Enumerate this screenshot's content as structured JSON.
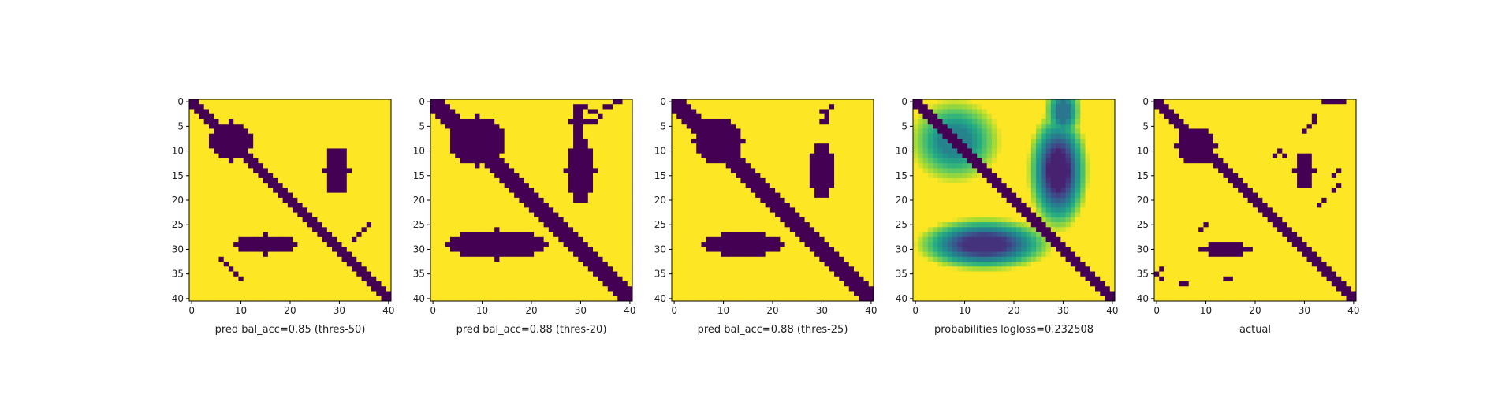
{
  "chart_data": [
    {
      "type": "heatmap",
      "title": "pred bal_acc=0.85 (thres-50)",
      "xticks": [
        0,
        10,
        20,
        30,
        40
      ],
      "yticks": [
        0,
        5,
        10,
        15,
        20,
        25,
        30,
        35,
        40
      ],
      "xlim": [
        0,
        40
      ],
      "ylim": [
        40,
        0
      ],
      "grid": false,
      "colormap": "viridis",
      "value_range": [
        0,
        1
      ],
      "background_value": 1,
      "regions": [
        {
          "kind": "band",
          "rows": [
            0,
            40
          ],
          "center_start": 0,
          "center_end": 40,
          "width": 3,
          "value": 0
        },
        {
          "kind": "ellipse",
          "cx": 8,
          "cy": 8,
          "rx": 4.5,
          "ry": 4,
          "value": 0
        },
        {
          "kind": "ellipse",
          "cx": 29.5,
          "cy": 14,
          "rx": 2.5,
          "ry": 5,
          "value": 0
        },
        {
          "kind": "ellipse",
          "cx": 15,
          "cy": 29,
          "rx": 6,
          "ry": 2,
          "value": 0
        },
        {
          "kind": "cells",
          "cells": [
            [
              33,
              28
            ],
            [
              34,
              27
            ],
            [
              35,
              26
            ],
            [
              36,
              25
            ],
            [
              6,
              32
            ],
            [
              7,
              33
            ],
            [
              8,
              34
            ],
            [
              9,
              35
            ],
            [
              10,
              36
            ]
          ],
          "value": 0
        }
      ]
    },
    {
      "type": "heatmap",
      "title": "pred bal_acc=0.88 (thres-20)",
      "xticks": [
        0,
        10,
        20,
        30,
        40
      ],
      "yticks": [
        0,
        5,
        10,
        15,
        20,
        25,
        30,
        35,
        40
      ],
      "xlim": [
        0,
        40
      ],
      "ylim": [
        40,
        0
      ],
      "grid": false,
      "colormap": "viridis",
      "value_range": [
        0,
        1
      ],
      "background_value": 1,
      "regions": [
        {
          "kind": "band",
          "rows": [
            0,
            40
          ],
          "center_start": 0,
          "center_end": 40,
          "width": 5,
          "value": 0
        },
        {
          "kind": "ellipse",
          "cx": 9,
          "cy": 8,
          "rx": 5.5,
          "ry": 5,
          "value": 0
        },
        {
          "kind": "ellipse",
          "cx": 30,
          "cy": 14,
          "rx": 3,
          "ry": 6.5,
          "value": 0
        },
        {
          "kind": "ellipse",
          "cx": 29.5,
          "cy": 4,
          "rx": 1.5,
          "ry": 4,
          "value": 0
        },
        {
          "kind": "ellipse",
          "cx": 13,
          "cy": 29,
          "rx": 10,
          "ry": 3,
          "value": 0
        },
        {
          "kind": "cells",
          "cells": [
            [
              31,
              1
            ],
            [
              32,
              2
            ],
            [
              33,
              2
            ],
            [
              34,
              3
            ],
            [
              35,
              1
            ],
            [
              36,
              1
            ],
            [
              37,
              0
            ],
            [
              38,
              0
            ],
            [
              33,
              4
            ],
            [
              32,
              4
            ]
          ],
          "value": 0
        }
      ]
    },
    {
      "type": "heatmap",
      "title": "pred bal_acc=0.88 (thres-25)",
      "xticks": [
        0,
        10,
        20,
        30,
        40
      ],
      "yticks": [
        0,
        5,
        10,
        15,
        20,
        25,
        30,
        35,
        40
      ],
      "xlim": [
        0,
        40
      ],
      "ylim": [
        40,
        0
      ],
      "grid": false,
      "colormap": "viridis",
      "value_range": [
        0,
        1
      ],
      "background_value": 1,
      "regions": [
        {
          "kind": "band",
          "rows": [
            0,
            40
          ],
          "center_start": 0,
          "center_end": 40,
          "width": 4,
          "value": 0
        },
        {
          "kind": "ellipse",
          "cx": 9,
          "cy": 8,
          "rx": 5,
          "ry": 4.5,
          "value": 0
        },
        {
          "kind": "ellipse",
          "cx": 30,
          "cy": 14,
          "rx": 2.5,
          "ry": 5.5,
          "value": 0
        },
        {
          "kind": "ellipse",
          "cx": 14,
          "cy": 29,
          "rx": 8,
          "ry": 2.5,
          "value": 0
        },
        {
          "kind": "cells",
          "cells": [
            [
              30,
              2
            ],
            [
              31,
              2
            ],
            [
              31,
              3
            ],
            [
              32,
              1
            ],
            [
              30,
              4
            ],
            [
              31,
              4
            ]
          ],
          "value": 0
        }
      ]
    },
    {
      "type": "heatmap",
      "title": "probabilities logloss=0.232508",
      "xticks": [
        0,
        10,
        20,
        30,
        40
      ],
      "yticks": [
        0,
        5,
        10,
        15,
        20,
        25,
        30,
        35,
        40
      ],
      "xlim": [
        0,
        40
      ],
      "ylim": [
        40,
        0
      ],
      "grid": false,
      "colormap": "viridis",
      "value_range": [
        0,
        1
      ],
      "background_value": 1,
      "regions": [
        {
          "kind": "band",
          "rows": [
            0,
            40
          ],
          "center_start": 0,
          "center_end": 40,
          "width": 3,
          "value": 0
        },
        {
          "kind": "blob",
          "cx": 8,
          "cy": 8,
          "rx": 6,
          "ry": 5.5,
          "value": 0.45
        },
        {
          "kind": "blob",
          "cx": 29,
          "cy": 14,
          "rx": 4,
          "ry": 8,
          "value": 0.1
        },
        {
          "kind": "blob",
          "cx": 14,
          "cy": 29,
          "rx": 9,
          "ry": 3.5,
          "value": 0.15
        },
        {
          "kind": "blob",
          "cx": 30,
          "cy": 2,
          "rx": 2.5,
          "ry": 4,
          "value": 0.4
        }
      ]
    },
    {
      "type": "heatmap",
      "title": "actual",
      "xticks": [
        0,
        10,
        20,
        30,
        40
      ],
      "yticks": [
        0,
        5,
        10,
        15,
        20,
        25,
        30,
        35,
        40
      ],
      "xlim": [
        0,
        40
      ],
      "ylim": [
        40,
        0
      ],
      "grid": false,
      "colormap": "viridis",
      "value_range": [
        0,
        1
      ],
      "background_value": 1,
      "regions": [
        {
          "kind": "band",
          "rows": [
            0,
            40
          ],
          "center_start": 0,
          "center_end": 40,
          "width": 3,
          "value": 0
        },
        {
          "kind": "ellipse",
          "cx": 8,
          "cy": 9,
          "rx": 4,
          "ry": 3.5,
          "value": 0
        },
        {
          "kind": "ellipse",
          "cx": 30,
          "cy": 14,
          "rx": 2,
          "ry": 3.5,
          "value": 0
        },
        {
          "kind": "ellipse",
          "cx": 14,
          "cy": 30,
          "rx": 5,
          "ry": 1.6,
          "value": 0
        },
        {
          "kind": "cells",
          "cells": [
            [
              34,
              0
            ],
            [
              35,
              0
            ],
            [
              36,
              0
            ],
            [
              37,
              0
            ],
            [
              38,
              0
            ],
            [
              32,
              3
            ],
            [
              32,
              4
            ],
            [
              31,
              5
            ],
            [
              30,
              6
            ],
            [
              24,
              11
            ],
            [
              25,
              10
            ],
            [
              26,
              11
            ],
            [
              1,
              34
            ],
            [
              0,
              35
            ],
            [
              1,
              36
            ],
            [
              5,
              37
            ],
            [
              6,
              37
            ],
            [
              14,
              36
            ],
            [
              15,
              36
            ],
            [
              37,
              17
            ],
            [
              36,
              18
            ],
            [
              34,
              20
            ],
            [
              33,
              21
            ],
            [
              10,
              25
            ],
            [
              9,
              26
            ],
            [
              36,
              15
            ],
            [
              37,
              14
            ]
          ],
          "value": 0
        }
      ]
    }
  ]
}
